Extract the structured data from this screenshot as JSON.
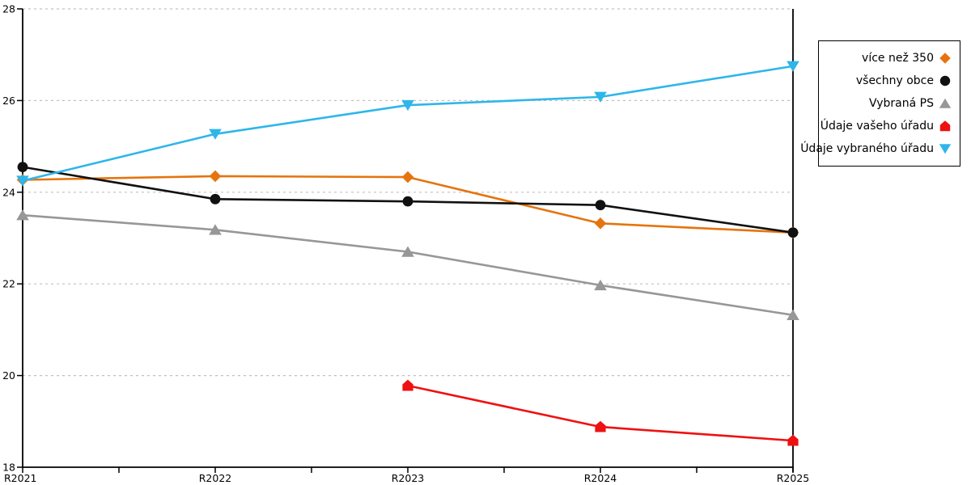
{
  "chart_data": {
    "type": "line",
    "title": "",
    "xlabel": "",
    "ylabel": "",
    "categories": [
      "R2021",
      "R2022",
      "R2023",
      "R2024",
      "R2025"
    ],
    "ylim": [
      18,
      28
    ],
    "y_ticks": [
      18,
      20,
      22,
      24,
      26,
      28
    ],
    "grid": "horizontal-dashed",
    "gridline_color": "#c0c0c0",
    "axis_color": "#000000",
    "legend_position": "outside-right",
    "series": [
      {
        "name": "více než 350",
        "marker": "diamond",
        "color": "#E5740E",
        "values": [
          24.27,
          24.35,
          24.33,
          23.32,
          23.12
        ]
      },
      {
        "name": "všechny obce",
        "marker": "circle",
        "color": "#111111",
        "values": [
          24.55,
          23.85,
          23.8,
          23.72,
          23.12
        ]
      },
      {
        "name": "Vybraná PS",
        "marker": "triangle-up",
        "color": "#979797",
        "values": [
          23.5,
          23.18,
          22.7,
          21.97,
          21.32
        ]
      },
      {
        "name": "Údaje vašeho úřadu",
        "marker": "pentagon",
        "color": "#EE1111",
        "values": [
          null,
          null,
          19.78,
          18.88,
          18.58
        ]
      },
      {
        "name": "Údaje vybraného úřadu",
        "marker": "triangle-down",
        "color": "#2EB6EA",
        "values": [
          24.25,
          25.27,
          25.9,
          26.08,
          26.75
        ]
      }
    ]
  }
}
